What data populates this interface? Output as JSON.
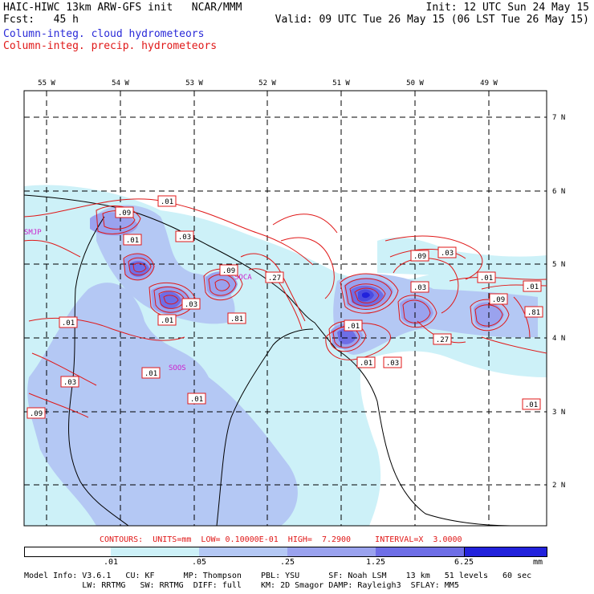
{
  "header": {
    "model_title": "HAIC-HIWC 13km ARW-GFS init   NCAR/MMM",
    "init_time": "Init: 12 UTC Sun 24 May 15",
    "forecast_hour": "Fcst:   45 h",
    "valid_time": "Valid: 09 UTC Tue 26 May 15 (06 LST Tue 26 May 15)",
    "field_cloud": "Column-integ. cloud hydrometeors",
    "field_precip": "Column-integ. precip. hydrometeors"
  },
  "colors": {
    "cloud_text": "#2a2ad8",
    "precip_text": "#e01818",
    "shade_1": "#cdf1f8",
    "shade_2": "#b4c8f4",
    "shade_3": "#9aa2ee",
    "shade_4": "#6e6ee6",
    "shade_5": "#4c4ce0",
    "shade_6": "#2222dc",
    "contour": "#e01818",
    "station": "#cc22cc"
  },
  "map": {
    "lon_labels": [
      "55 W",
      "54 W",
      "53 W",
      "52 W",
      "51 W",
      "50 W",
      "49 W"
    ],
    "lat_labels": [
      "7 N",
      "6 N",
      "5 N",
      "4 N",
      "3 N",
      "2 N"
    ],
    "stations": [
      "SMJP",
      "SOCA",
      "SOOS"
    ],
    "contour_labels": [
      ".01",
      ".09",
      ".01",
      ".03",
      ".09",
      ".27",
      ".03",
      ".81",
      ".01",
      ".01",
      ".03",
      ".01",
      ".09",
      ".01",
      ".03",
      ".09",
      ".03",
      ".01",
      ".01",
      ".81",
      ".09",
      ".27",
      ".01",
      ".03",
      ".01",
      ".01",
      ".01"
    ]
  },
  "contour_info": "CONTOURS:  UNITS=mm  LOW= 0.10000E-01  HIGH=  7.2900     INTERVAL=X  3.0000",
  "colorbar": {
    "tick_labels": [
      ".01",
      ".05",
      ".25",
      "1.25",
      "6.25"
    ],
    "unit": "mm"
  },
  "footer": {
    "line1": "Model Info: V3.6.1   CU: KF      MP: Thompson    PBL: YSU      SF: Noah LSM    13 km   51 levels   60 sec",
    "line2": "            LW: RRTMG   SW: RRTMG  DIFF: full    KM: 2D Smagor DAMP: Rayleigh3  SFLAY: MM5"
  }
}
